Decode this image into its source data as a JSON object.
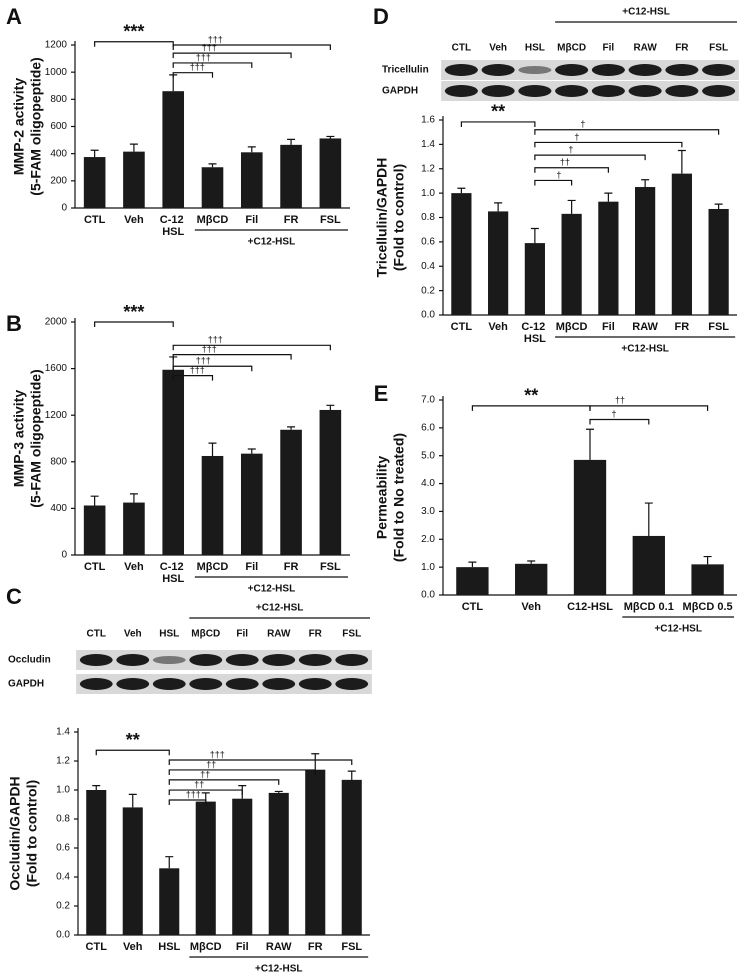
{
  "chart_data": [
    {
      "type": "bar",
      "panel": "A",
      "ylabel": [
        "MMP-2 activity",
        "(5-FAM oligopeptide)"
      ],
      "categories": [
        "CTL",
        "Veh",
        "C-12 HSL",
        "MβCD",
        "Fil",
        "FR",
        "FSL"
      ],
      "values": [
        375,
        415,
        860,
        300,
        410,
        465,
        512
      ],
      "errors": [
        50,
        55,
        120,
        25,
        40,
        40,
        15
      ],
      "color": "#1a1a1a",
      "ylim": [
        0,
        1200
      ],
      "yticks": [
        0,
        200,
        400,
        600,
        800,
        1000,
        1200
      ],
      "group_label": "+C12-HSL",
      "annotations": [
        "***",
        "†††",
        "†††",
        "†††",
        "†††"
      ]
    },
    {
      "type": "bar",
      "panel": "B",
      "ylabel": [
        "MMP-3 activity",
        "(5-FAM oligopeptide)"
      ],
      "categories": [
        "CTL",
        "Veh",
        "C-12 HSL",
        "MβCD",
        "Fil",
        "FR",
        "FSL"
      ],
      "values": [
        425,
        450,
        1590,
        850,
        870,
        1075,
        1245
      ],
      "errors": [
        80,
        75,
        110,
        110,
        40,
        25,
        40
      ],
      "color": "#1a1a1a",
      "ylim": [
        0,
        2000
      ],
      "yticks": [
        0,
        400,
        800,
        1200,
        1600,
        2000
      ],
      "group_label": "+C12-HSL",
      "annotations": [
        "***",
        "†††",
        "†††",
        "†††",
        "†††"
      ]
    },
    {
      "type": "bar",
      "panel": "C",
      "ylabel": [
        "Occludin/GAPDH",
        "(Fold to control)"
      ],
      "blot": {
        "rows": [
          "Occludin",
          "GAPDH"
        ],
        "lanes": [
          "CTL",
          "Veh",
          "HSL",
          "MβCD",
          "Fil",
          "RAW",
          "FR",
          "FSL"
        ],
        "group_label": "+C12-HSL"
      },
      "categories": [
        "CTL",
        "Veh",
        "HSL",
        "MβCD",
        "Fil",
        "RAW",
        "FR",
        "FSL"
      ],
      "values": [
        1.0,
        0.88,
        0.46,
        0.92,
        0.94,
        0.98,
        1.14,
        1.07
      ],
      "errors": [
        0.03,
        0.09,
        0.08,
        0.06,
        0.09,
        0.01,
        0.11,
        0.06
      ],
      "color": "#1a1a1a",
      "ylim": [
        0,
        1.4
      ],
      "yticks": [
        {
          "value": 0,
          "label": "0.0"
        },
        {
          "value": 0.2,
          "label": "0.2"
        },
        {
          "value": 0.4,
          "label": "0.4"
        },
        {
          "value": 0.6,
          "label": "0.6"
        },
        {
          "value": 0.8,
          "label": "0.8"
        },
        {
          "value": 1,
          "label": "1.0"
        },
        {
          "value": 1.2,
          "label": "1.2"
        },
        {
          "value": 1.4,
          "label": "1.4"
        }
      ],
      "group_label": "+C12-HSL",
      "annotations": [
        "**",
        "†††",
        "††",
        "††",
        "††",
        "†††"
      ]
    },
    {
      "type": "bar",
      "panel": "D",
      "ylabel": [
        "Tricellulin/GAPDH",
        "(Fold to control)"
      ],
      "blot": {
        "rows": [
          "Tricellulin",
          "GAPDH"
        ],
        "lanes": [
          "CTL",
          "Veh",
          "HSL",
          "MβCD",
          "Fil",
          "RAW",
          "FR",
          "FSL"
        ],
        "group_label": "+C12-HSL"
      },
      "categories": [
        "CTL",
        "Veh",
        "C-12 HSL",
        "MβCD",
        "Fil",
        "RAW",
        "FR",
        "FSL"
      ],
      "values": [
        1.0,
        0.85,
        0.59,
        0.83,
        0.93,
        1.05,
        1.16,
        0.87
      ],
      "errors": [
        0.04,
        0.07,
        0.12,
        0.11,
        0.07,
        0.06,
        0.19,
        0.04
      ],
      "color": "#1a1a1a",
      "ylim": [
        0,
        1.6
      ],
      "yticks": [
        {
          "value": 0,
          "label": "0.0"
        },
        {
          "value": 0.2,
          "label": "0.2"
        },
        {
          "value": 0.4,
          "label": "0.4"
        },
        {
          "value": 0.6,
          "label": "0.6"
        },
        {
          "value": 0.8,
          "label": "0.8"
        },
        {
          "value": 1,
          "label": "1.0"
        },
        {
          "value": 1.2,
          "label": "1.2"
        },
        {
          "value": 1.4,
          "label": "1.4"
        },
        {
          "value": 1.6,
          "label": "1.6"
        }
      ],
      "group_label": "+C12-HSL",
      "annotations": [
        "**",
        "†",
        "††",
        "†",
        "†",
        "†"
      ]
    },
    {
      "type": "bar",
      "panel": "E",
      "ylabel": [
        "Permeability",
        "(Fold to No treated)"
      ],
      "categories": [
        "CTL",
        "Veh",
        "C12-HSL",
        "MβCD 0.1",
        "MβCD 0.5"
      ],
      "values": [
        1.0,
        1.12,
        4.85,
        2.12,
        1.1
      ],
      "errors": [
        0.18,
        0.1,
        1.1,
        1.18,
        0.28
      ],
      "color": "#1a1a1a",
      "ylim": [
        0,
        7
      ],
      "yticks": [
        {
          "value": 0,
          "label": "0.0"
        },
        {
          "value": 1,
          "label": "1.0"
        },
        {
          "value": 2,
          "label": "2.0"
        },
        {
          "value": 3,
          "label": "3.0"
        },
        {
          "value": 4,
          "label": "4.0"
        },
        {
          "value": 5,
          "label": "5.0"
        },
        {
          "value": 6,
          "label": "6.0"
        },
        {
          "value": 7,
          "label": "7.0"
        }
      ],
      "group_label": "+C12-HSL",
      "annotations": [
        "**",
        "†",
        "††"
      ]
    }
  ]
}
